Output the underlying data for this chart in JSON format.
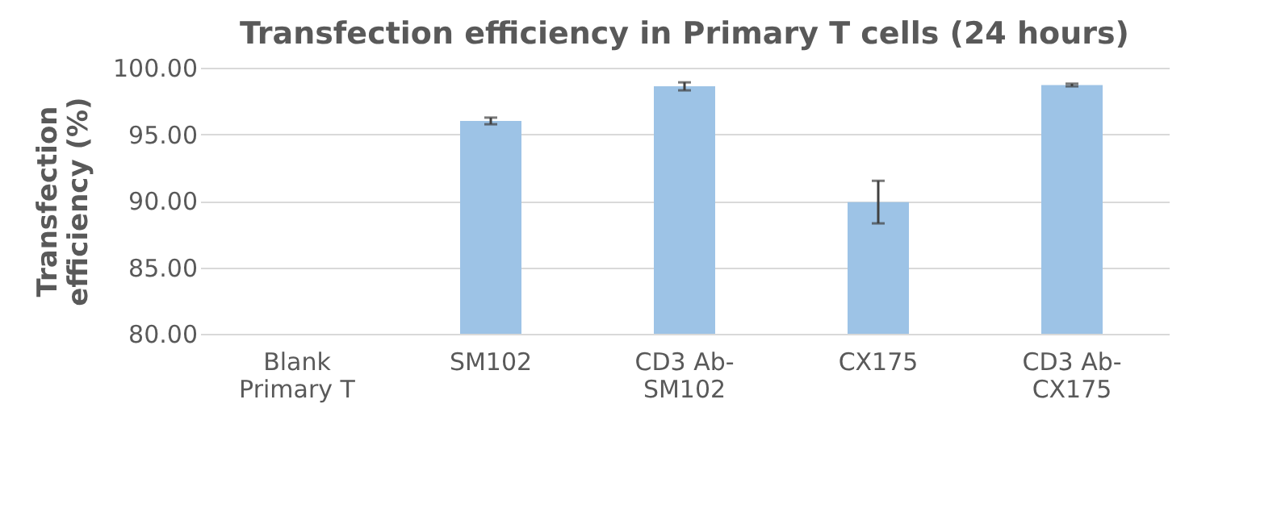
{
  "chart_data": {
    "type": "bar",
    "title": "Transfection efficiency in Primary T cells (24 hours)",
    "ylabel": "Transfection efficiency (%)",
    "categories": [
      "Blank Primary T",
      "SM102",
      "CD3 Ab-SM102",
      "CX175",
      "CD3 Ab-CX175"
    ],
    "values": [
      null,
      96.0,
      98.6,
      89.9,
      98.7
    ],
    "errors": [
      null,
      0.25,
      0.3,
      1.6,
      0.1
    ],
    "color": "#9dc3e6",
    "ylim": [
      80,
      100
    ],
    "yticks": [
      {
        "value": 80,
        "label": "80.00"
      },
      {
        "value": 85,
        "label": "85.00"
      },
      {
        "value": 90,
        "label": "90.00"
      },
      {
        "value": 95,
        "label": "95.00"
      },
      {
        "value": 100,
        "label": "100.00"
      }
    ],
    "grid": "y"
  }
}
